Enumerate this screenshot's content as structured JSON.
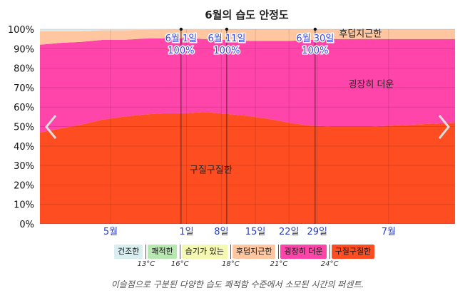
{
  "chart_data": {
    "type": "area",
    "stacked": true,
    "title": "6월의 습도 안정도",
    "x": [
      0,
      0.05,
      0.1,
      0.15,
      0.2,
      0.25,
      0.3,
      0.35,
      0.4,
      0.45,
      0.5,
      0.55,
      0.6,
      0.65,
      0.7,
      0.75,
      0.8,
      0.85,
      0.9,
      0.95,
      1.0
    ],
    "series": [
      {
        "name": "건조한",
        "color": "#d9eef0",
        "values": [
          1,
          1,
          1,
          0.5,
          0.5,
          0.3,
          0.2,
          0.2,
          0.1,
          0,
          0,
          0,
          0,
          0,
          0,
          0,
          0,
          0,
          0,
          0,
          0
        ]
      },
      {
        "name": "쾌적한",
        "color": "#b7e8b0",
        "values": [
          0,
          0,
          0,
          0,
          0,
          0,
          0,
          0,
          0,
          0,
          0,
          0,
          0,
          0,
          0,
          0,
          0,
          0,
          0,
          0,
          0
        ]
      },
      {
        "name": "습기가 있는",
        "color": "#f4f8b0",
        "values": [
          0,
          0,
          0,
          0,
          0,
          0,
          0,
          0,
          0,
          0,
          0,
          0,
          0,
          0,
          0,
          0,
          0,
          0,
          0,
          0,
          0
        ]
      },
      {
        "name": "후덥지근한",
        "color": "#ffc6a0",
        "values": [
          7,
          6,
          5.5,
          5,
          5,
          4.5,
          4.5,
          4.5,
          5,
          5.5,
          6,
          6,
          6,
          5.5,
          5,
          5,
          5,
          5,
          5,
          5,
          5
        ]
      },
      {
        "name": "굉장히 더운",
        "color": "#ff44aa",
        "values": [
          45,
          44,
          42.5,
          41,
          39.5,
          39,
          38.5,
          38.5,
          37.5,
          38,
          38.5,
          40,
          42,
          44,
          45,
          45,
          45,
          44.5,
          44,
          43.5,
          43
        ]
      },
      {
        "name": "구질구질한",
        "color": "#ff4d22",
        "values": [
          47,
          49,
          51,
          53.5,
          55,
          56.2,
          56.8,
          56.8,
          57.4,
          56.5,
          55.5,
          54,
          52,
          50.5,
          50,
          50,
          50,
          50.5,
          51,
          51.5,
          52
        ]
      }
    ],
    "ylim": [
      0,
      100
    ],
    "ytick_labels": [
      "0%",
      "10%",
      "20%",
      "30%",
      "40%",
      "50%",
      "60%",
      "70%",
      "80%",
      "90%",
      "100%"
    ],
    "xticks": [
      {
        "label": "5월",
        "pos": 0.17
      },
      {
        "label": "1일",
        "pos": 0.353
      },
      {
        "label": "8일",
        "pos": 0.437
      },
      {
        "label": "15일",
        "pos": 0.519
      },
      {
        "label": "22일",
        "pos": 0.6
      },
      {
        "label": "29일",
        "pos": 0.668
      },
      {
        "label": "7월",
        "pos": 0.84
      }
    ],
    "markers": [
      {
        "date": "6월 1일",
        "value": "100%",
        "pos": 0.34
      },
      {
        "date": "6월 11일",
        "value": "100%",
        "pos": 0.45
      },
      {
        "date": "6월 30일",
        "value": "100%",
        "pos": 0.663
      }
    ],
    "area_labels": [
      {
        "text": "후덥지근한",
        "x": 0.772,
        "y": 98
      },
      {
        "text": "굉장히 더운",
        "x": 0.798,
        "y": 72
      },
      {
        "text": "구질구질한",
        "x": 0.412,
        "y": 28
      }
    ],
    "legend_temps": [
      "13°C",
      "16°C",
      "18°C",
      "21°C",
      "24°C"
    ],
    "caption": "이슬점으로 구분된 다양한 습도 쾌적함 수준에서 소모된 시간의 퍼센트."
  }
}
